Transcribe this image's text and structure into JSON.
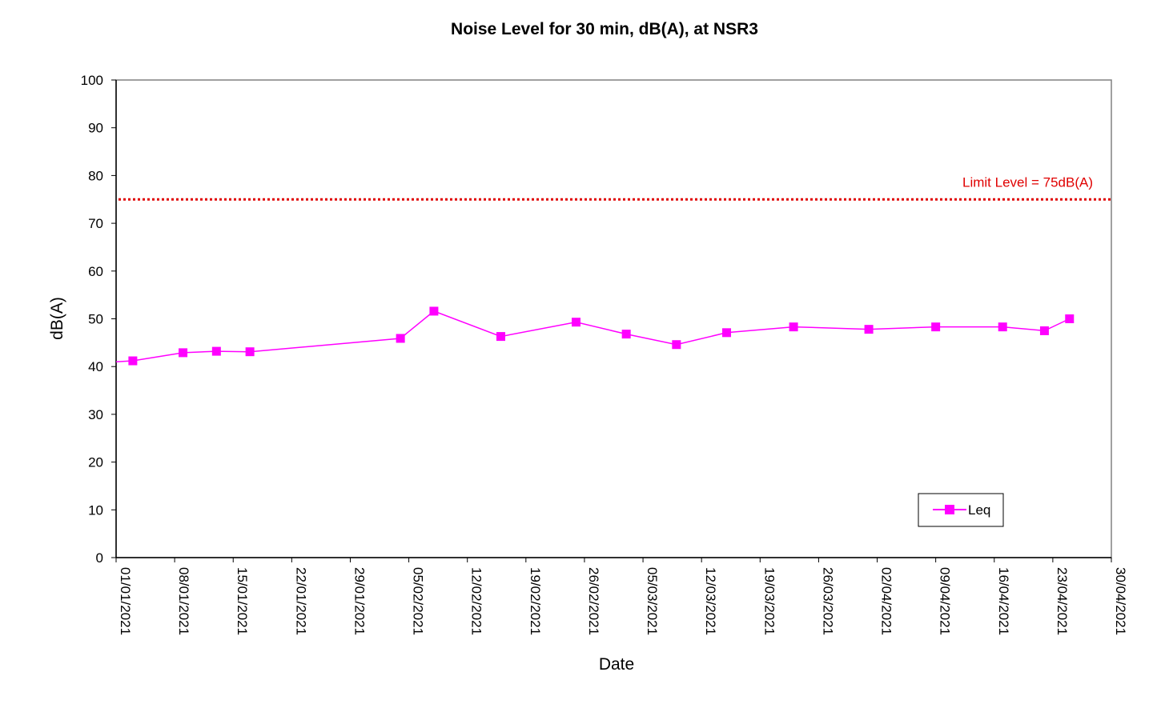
{
  "chart_data": {
    "type": "line",
    "title": "Noise Level for 30 min, dB(A), at NSR3",
    "xlabel": "Date",
    "ylabel": "dB(A)",
    "xlim": [
      "2021-01-01",
      "2021-04-30"
    ],
    "ylim": [
      0,
      100
    ],
    "y_ticks": [
      0,
      10,
      20,
      30,
      40,
      50,
      60,
      70,
      80,
      90,
      100
    ],
    "x_ticks": [
      "01/01/2021",
      "08/01/2021",
      "15/01/2021",
      "22/01/2021",
      "29/01/2021",
      "05/02/2021",
      "12/02/2021",
      "19/02/2021",
      "26/02/2021",
      "05/03/2021",
      "12/03/2021",
      "19/03/2021",
      "26/03/2021",
      "02/04/2021",
      "09/04/2021",
      "16/04/2021",
      "23/04/2021",
      "30/04/2021"
    ],
    "grid": false,
    "legend_position": "bottom-right",
    "colors": {
      "series": "#ff00ff",
      "limit": "#e00000",
      "axis": "#000000",
      "frame": "#808080"
    },
    "series": [
      {
        "name": "Leq",
        "marker": "square",
        "x": [
          "2021-01-01",
          "2021-01-03",
          "2021-01-09",
          "2021-01-13",
          "2021-01-17",
          "2021-02-04",
          "2021-02-08",
          "2021-02-16",
          "2021-02-25",
          "2021-03-03",
          "2021-03-09",
          "2021-03-15",
          "2021-03-23",
          "2021-04-01",
          "2021-04-09",
          "2021-04-17",
          "2021-04-22",
          "2021-04-25"
        ],
        "values": [
          41.0,
          41.2,
          42.9,
          43.2,
          43.1,
          45.9,
          51.6,
          46.3,
          49.3,
          46.8,
          44.6,
          47.1,
          48.3,
          47.8,
          48.3,
          48.3,
          47.5,
          50.0
        ],
        "marker_points": [
          false,
          true,
          true,
          true,
          true,
          true,
          true,
          true,
          true,
          true,
          true,
          true,
          true,
          true,
          true,
          true,
          true,
          true
        ]
      }
    ],
    "reference_lines": [
      {
        "name": "Limit Level = 75dB(A)",
        "value": 75,
        "style": "dotted"
      }
    ]
  }
}
